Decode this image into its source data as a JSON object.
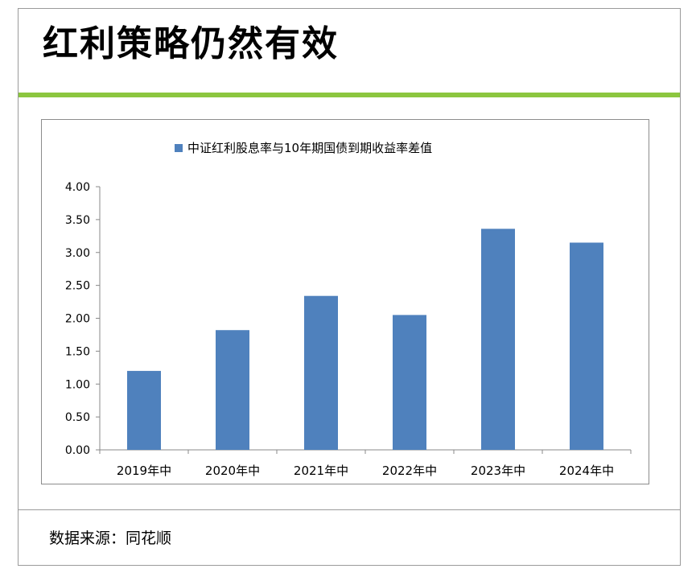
{
  "page": {
    "title": "红利策略仍然有效",
    "source": "数据来源：同花顺"
  },
  "colors": {
    "bar": "#4f81bd",
    "accent_green": "#8cc63f"
  },
  "chart_data": {
    "type": "bar",
    "categories": [
      "2019年中",
      "2020年中",
      "2021年中",
      "2022年中",
      "2023年中",
      "2024年中"
    ],
    "series": [
      {
        "name": "中证红利股息率与10年期国债到期收益率差值",
        "values": [
          1.2,
          1.82,
          2.34,
          2.05,
          3.36,
          3.15
        ]
      }
    ],
    "ylim": [
      0,
      4
    ],
    "yticks": [
      "0.00",
      "0.50",
      "1.00",
      "1.50",
      "2.00",
      "2.50",
      "3.00",
      "3.50",
      "4.00"
    ],
    "legend_position": "top",
    "grid": false
  }
}
